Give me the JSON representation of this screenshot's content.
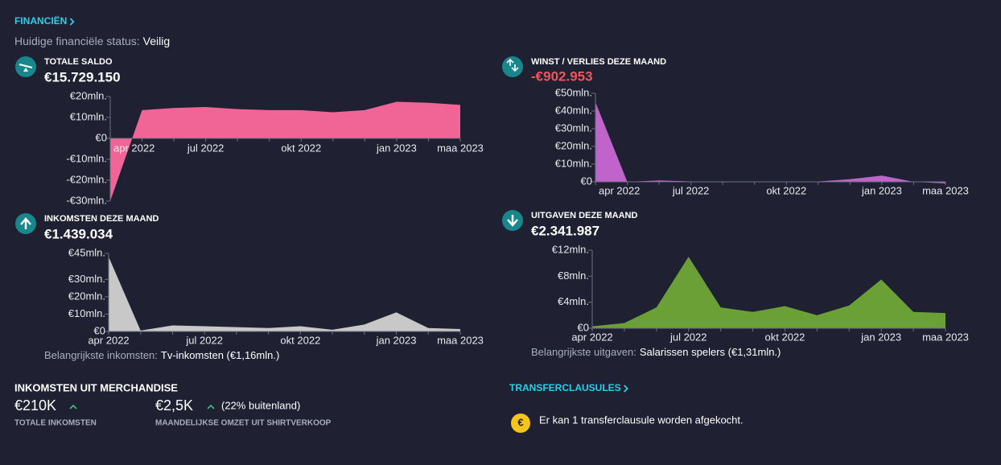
{
  "header": {
    "title": "FINANCIËN",
    "status_label": "Huidige financiële status:",
    "status_value": "Veilig"
  },
  "panels": [
    {
      "title": "TOTALE SALDO",
      "amount": "€15.729.150",
      "chart": {
        "type": "area",
        "color": "#f06595",
        "categories": [
          "apr 2022",
          null,
          null,
          "jul 2022",
          null,
          null,
          "okt 2022",
          null,
          null,
          "jan 2023",
          null,
          "maa 2023"
        ],
        "values": [
          -30,
          13.5,
          14.5,
          15,
          14,
          13.5,
          13.5,
          12.5,
          13.5,
          17.5,
          17,
          16
        ],
        "ylim": [
          -30,
          20
        ],
        "yticks": [
          {
            "value": 20,
            "label": "€20mln."
          },
          {
            "value": 10,
            "label": "€10mln."
          },
          {
            "value": 0,
            "label": "€0"
          },
          {
            "value": -10,
            "label": "-€10mln."
          },
          {
            "value": -20,
            "label": "-€20mln."
          },
          {
            "value": -30,
            "label": "-€30mln."
          }
        ]
      }
    },
    {
      "title": "WINST / VERLIES DEZE MAAND",
      "amount": "-€902.953",
      "amount_color": "#f0555a",
      "chart": {
        "type": "area",
        "color": "#c064cc",
        "categories": [
          "apr 2022",
          null,
          null,
          "jul 2022",
          null,
          null,
          "okt 2022",
          null,
          null,
          "jan 2023",
          null,
          "maa 2023"
        ],
        "values": [
          45,
          0,
          0.8,
          0.2,
          -0.3,
          0,
          0,
          0.2,
          1.5,
          3.5,
          0,
          -0.9
        ],
        "ylim": [
          0,
          50
        ],
        "yticks": [
          {
            "value": 50,
            "label": "€50mln."
          },
          {
            "value": 40,
            "label": "€40mln."
          },
          {
            "value": 30,
            "label": "€30mln."
          },
          {
            "value": 20,
            "label": "€20mln."
          },
          {
            "value": 10,
            "label": "€10mln."
          },
          {
            "value": 0,
            "label": "€0"
          }
        ]
      }
    },
    {
      "title": "INKOMSTEN DEZE MAAND",
      "amount": "€1.439.034",
      "footnote_label": "Belangrijkste inkomsten:",
      "footnote_value": "Tv-inkomsten (€1,16mln.)",
      "chart": {
        "type": "area",
        "color": "#c8c8c8",
        "categories": [
          "apr 2022",
          null,
          null,
          "jul 2022",
          null,
          null,
          "okt 2022",
          null,
          null,
          "jan 2023",
          null,
          "maa 2023"
        ],
        "values": [
          43,
          0.5,
          3.5,
          3,
          2.5,
          2,
          3,
          1,
          4,
          11,
          2,
          1.4
        ],
        "ylim": [
          0,
          45
        ],
        "yticks": [
          {
            "value": 45,
            "label": "€45mln."
          },
          {
            "value": 30,
            "label": "€30mln."
          },
          {
            "value": 20,
            "label": "€20mln."
          },
          {
            "value": 10,
            "label": "€10mln."
          },
          {
            "value": 0,
            "label": "€0"
          }
        ]
      }
    },
    {
      "title": "UITGAVEN DEZE MAAND",
      "amount": "€2.341.987",
      "footnote_label": "Belangrijkste uitgaven:",
      "footnote_value": "Salarissen spelers (€1,31mln.)",
      "chart": {
        "type": "area",
        "color": "#6aa036",
        "categories": [
          "apr 2022",
          null,
          null,
          "jul 2022",
          null,
          null,
          "okt 2022",
          null,
          null,
          "jan 2023",
          null,
          "maa 2023"
        ],
        "values": [
          0.3,
          0.8,
          3.2,
          11,
          3.2,
          2.5,
          3.4,
          2,
          3.5,
          7.5,
          2.5,
          2.34
        ],
        "ylim": [
          0,
          12
        ],
        "yticks": [
          {
            "value": 12,
            "label": "€12mln."
          },
          {
            "value": 8,
            "label": "€8mln."
          },
          {
            "value": 4,
            "label": "€4mln."
          },
          {
            "value": 0,
            "label": "€0"
          }
        ]
      }
    }
  ],
  "merchandise": {
    "title": "INKOMSTEN UIT MERCHANDISE",
    "total": "€210K",
    "total_label": "TOTALE INKOMSTEN",
    "monthly": "€2,5K",
    "monthly_note": "(22% buitenland)",
    "monthly_label": "MAANDELIJKSE OMZET UIT SHIRTVERKOOP"
  },
  "transfer": {
    "title": "TRANSFERCLAUSULES",
    "icon": "€",
    "text": "Er kan 1 transferclausule worden afgekocht."
  }
}
